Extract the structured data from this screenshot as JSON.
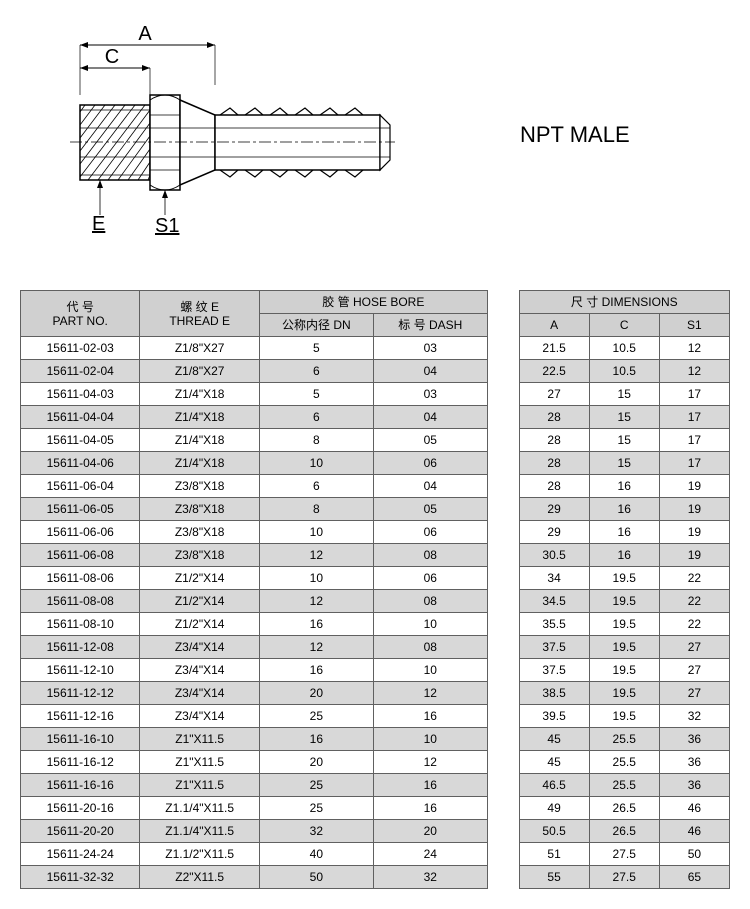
{
  "title": "NPT MALE",
  "diagram": {
    "labels": {
      "A": "A",
      "C": "C",
      "E": "E",
      "S1": "S1"
    },
    "stroke": "#000000",
    "fill": "#ffffff",
    "hatch": "#808080"
  },
  "table": {
    "headers": {
      "part_cn": "代 号",
      "part_en": "PART NO.",
      "thread_cn": "螺 纹 E",
      "thread_en": "THREAD E",
      "hose_cn": "胶 管",
      "hose_en": "HOSE BORE",
      "dn_cn": "公称内径",
      "dn_en": "DN",
      "dash_cn": "标 号",
      "dash_en": "DASH",
      "dim_cn": "尺 寸",
      "dim_en": "DIMENSIONS",
      "A": "A",
      "C": "C",
      "S1": "S1"
    },
    "rows": [
      {
        "part": "15611-02-03",
        "thread": "Z1/8\"X27",
        "dn": "5",
        "dash": "03",
        "a": "21.5",
        "c": "10.5",
        "s1": "12"
      },
      {
        "part": "15611-02-04",
        "thread": "Z1/8\"X27",
        "dn": "6",
        "dash": "04",
        "a": "22.5",
        "c": "10.5",
        "s1": "12"
      },
      {
        "part": "15611-04-03",
        "thread": "Z1/4\"X18",
        "dn": "5",
        "dash": "03",
        "a": "27",
        "c": "15",
        "s1": "17"
      },
      {
        "part": "15611-04-04",
        "thread": "Z1/4\"X18",
        "dn": "6",
        "dash": "04",
        "a": "28",
        "c": "15",
        "s1": "17"
      },
      {
        "part": "15611-04-05",
        "thread": "Z1/4\"X18",
        "dn": "8",
        "dash": "05",
        "a": "28",
        "c": "15",
        "s1": "17"
      },
      {
        "part": "15611-04-06",
        "thread": "Z1/4\"X18",
        "dn": "10",
        "dash": "06",
        "a": "28",
        "c": "15",
        "s1": "17"
      },
      {
        "part": "15611-06-04",
        "thread": "Z3/8\"X18",
        "dn": "6",
        "dash": "04",
        "a": "28",
        "c": "16",
        "s1": "19"
      },
      {
        "part": "15611-06-05",
        "thread": "Z3/8\"X18",
        "dn": "8",
        "dash": "05",
        "a": "29",
        "c": "16",
        "s1": "19"
      },
      {
        "part": "15611-06-06",
        "thread": "Z3/8\"X18",
        "dn": "10",
        "dash": "06",
        "a": "29",
        "c": "16",
        "s1": "19"
      },
      {
        "part": "15611-06-08",
        "thread": "Z3/8\"X18",
        "dn": "12",
        "dash": "08",
        "a": "30.5",
        "c": "16",
        "s1": "19"
      },
      {
        "part": "15611-08-06",
        "thread": "Z1/2\"X14",
        "dn": "10",
        "dash": "06",
        "a": "34",
        "c": "19.5",
        "s1": "22"
      },
      {
        "part": "15611-08-08",
        "thread": "Z1/2\"X14",
        "dn": "12",
        "dash": "08",
        "a": "34.5",
        "c": "19.5",
        "s1": "22"
      },
      {
        "part": "15611-08-10",
        "thread": "Z1/2\"X14",
        "dn": "16",
        "dash": "10",
        "a": "35.5",
        "c": "19.5",
        "s1": "22"
      },
      {
        "part": "15611-12-08",
        "thread": "Z3/4\"X14",
        "dn": "12",
        "dash": "08",
        "a": "37.5",
        "c": "19.5",
        "s1": "27"
      },
      {
        "part": "15611-12-10",
        "thread": "Z3/4\"X14",
        "dn": "16",
        "dash": "10",
        "a": "37.5",
        "c": "19.5",
        "s1": "27"
      },
      {
        "part": "15611-12-12",
        "thread": "Z3/4\"X14",
        "dn": "20",
        "dash": "12",
        "a": "38.5",
        "c": "19.5",
        "s1": "27"
      },
      {
        "part": "15611-12-16",
        "thread": "Z3/4\"X14",
        "dn": "25",
        "dash": "16",
        "a": "39.5",
        "c": "19.5",
        "s1": "32"
      },
      {
        "part": "15611-16-10",
        "thread": "Z1\"X11.5",
        "dn": "16",
        "dash": "10",
        "a": "45",
        "c": "25.5",
        "s1": "36"
      },
      {
        "part": "15611-16-12",
        "thread": "Z1\"X11.5",
        "dn": "20",
        "dash": "12",
        "a": "45",
        "c": "25.5",
        "s1": "36"
      },
      {
        "part": "15611-16-16",
        "thread": "Z1\"X11.5",
        "dn": "25",
        "dash": "16",
        "a": "46.5",
        "c": "25.5",
        "s1": "36"
      },
      {
        "part": "15611-20-16",
        "thread": "Z1.1/4\"X11.5",
        "dn": "25",
        "dash": "16",
        "a": "49",
        "c": "26.5",
        "s1": "46"
      },
      {
        "part": "15611-20-20",
        "thread": "Z1.1/4\"X11.5",
        "dn": "32",
        "dash": "20",
        "a": "50.5",
        "c": "26.5",
        "s1": "46"
      },
      {
        "part": "15611-24-24",
        "thread": "Z1.1/2\"X11.5",
        "dn": "40",
        "dash": "24",
        "a": "51",
        "c": "27.5",
        "s1": "50"
      },
      {
        "part": "15611-32-32",
        "thread": "Z2\"X11.5",
        "dn": "50",
        "dash": "32",
        "a": "55",
        "c": "27.5",
        "s1": "65"
      }
    ]
  },
  "colors": {
    "header_bg": "#d0d0d0",
    "alt_bg": "#d8d8d8",
    "border": "#606060",
    "text": "#000000"
  }
}
